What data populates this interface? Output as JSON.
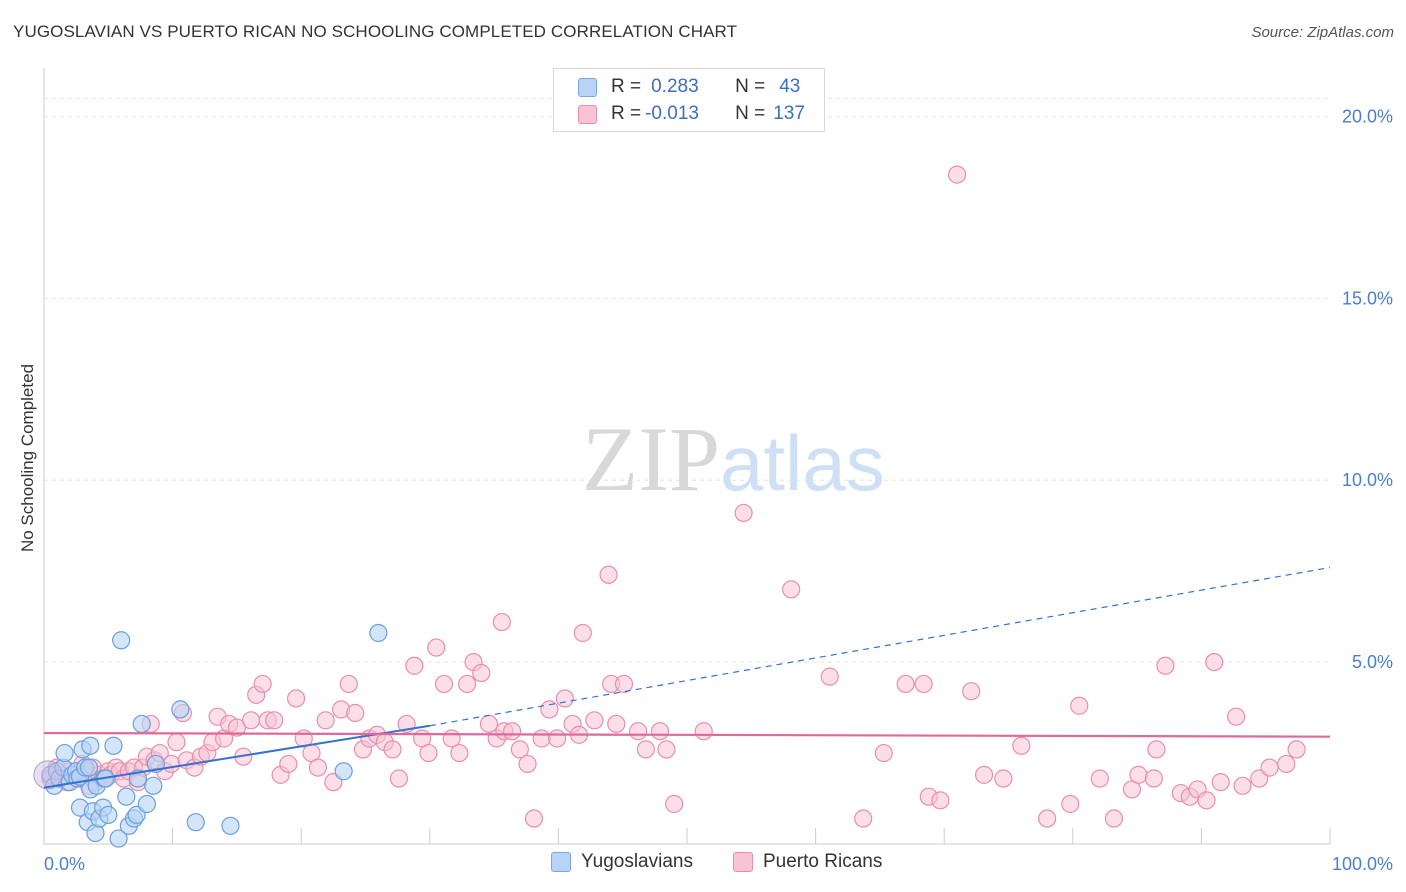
{
  "header": {
    "title": "YUGOSLAVIAN VS PUERTO RICAN NO SCHOOLING COMPLETED CORRELATION CHART",
    "source": "Source: ZipAtlas.com"
  },
  "watermark": {
    "zip": "ZIP",
    "atlas": "atlas"
  },
  "legend": {
    "r_label": "R =",
    "n_label": "N =",
    "rows": [
      {
        "name": "Yugoslavians",
        "r": "0.283",
        "n": "43",
        "fill": "#b8d3f4",
        "stroke": "#7aa7e0"
      },
      {
        "name": "Puerto Ricans",
        "r": "-0.013",
        "n": "137",
        "fill": "#f8c3d4",
        "stroke": "#e98fae"
      }
    ]
  },
  "chart_data": {
    "type": "scatter",
    "title": "YUGOSLAVIAN VS PUERTO RICAN NO SCHOOLING COMPLETED CORRELATION CHART",
    "xlabel": "",
    "ylabel": "No Schooling Completed",
    "xlim": [
      0,
      100
    ],
    "ylim": [
      0,
      21
    ],
    "x_tick_labels": [
      "0.0%",
      "100.0%"
    ],
    "y_ticks": [
      {
        "value": 5,
        "label": "5.0%"
      },
      {
        "value": 10,
        "label": "10.0%"
      },
      {
        "value": 15,
        "label": "15.0%"
      },
      {
        "value": 20,
        "label": "20.0%"
      }
    ],
    "grid": true,
    "series": [
      {
        "name": "Yugoslavians",
        "color": "#6a9fe0",
        "fill": "#b8d3f4",
        "trend": {
          "x0": 0,
          "y0": 1.55,
          "x1": 30,
          "y1": 3.25,
          "dashed_to_x": 100,
          "dashed_to_y": 7.6,
          "color": "#3572d0"
        },
        "points": [
          [
            0.5,
            1.9
          ],
          [
            0.8,
            1.6
          ],
          [
            1.0,
            2.0
          ],
          [
            1.2,
            1.8
          ],
          [
            1.5,
            2.1
          ],
          [
            1.6,
            2.5
          ],
          [
            2.0,
            1.7
          ],
          [
            2.2,
            1.9
          ],
          [
            2.5,
            2.0
          ],
          [
            2.6,
            1.8
          ],
          [
            2.8,
            1.85
          ],
          [
            3.0,
            2.6
          ],
          [
            3.2,
            2.1
          ],
          [
            2.8,
            1.0
          ],
          [
            3.4,
            0.6
          ],
          [
            3.6,
            1.5
          ],
          [
            3.5,
            2.1
          ],
          [
            3.6,
            2.7
          ],
          [
            3.8,
            0.9
          ],
          [
            4.0,
            0.3
          ],
          [
            4.1,
            1.6
          ],
          [
            4.3,
            0.7
          ],
          [
            4.6,
            1.0
          ],
          [
            4.7,
            1.8
          ],
          [
            4.8,
            1.8
          ],
          [
            5.0,
            0.8
          ],
          [
            5.4,
            2.7
          ],
          [
            5.8,
            0.15
          ],
          [
            6.0,
            5.6
          ],
          [
            6.4,
            1.3
          ],
          [
            6.6,
            0.5
          ],
          [
            7.0,
            0.7
          ],
          [
            7.2,
            0.8
          ],
          [
            7.3,
            1.8
          ],
          [
            7.6,
            3.3
          ],
          [
            8.0,
            1.1
          ],
          [
            8.5,
            1.6
          ],
          [
            8.7,
            2.2
          ],
          [
            10.6,
            3.7
          ],
          [
            11.8,
            0.6
          ],
          [
            14.5,
            0.5
          ],
          [
            23.3,
            2.0
          ],
          [
            26.0,
            5.8
          ]
        ]
      },
      {
        "name": "Puerto Ricans",
        "color": "#e98fae",
        "fill": "#f8c3d4",
        "trend": {
          "x0": 0,
          "y0": 3.05,
          "x1": 100,
          "y1": 2.95,
          "color": "#e0689a"
        },
        "points": [
          [
            0.5,
            1.8
          ],
          [
            1.0,
            2.1
          ],
          [
            1.4,
            1.9
          ],
          [
            1.8,
            1.7
          ],
          [
            2.0,
            2.0
          ],
          [
            2.4,
            1.9
          ],
          [
            2.6,
            1.8
          ],
          [
            3.0,
            2.2
          ],
          [
            3.3,
            2.0
          ],
          [
            3.5,
            1.6
          ],
          [
            3.8,
            2.1
          ],
          [
            4.0,
            1.7
          ],
          [
            4.3,
            1.9
          ],
          [
            4.6,
            1.8
          ],
          [
            5.0,
            2.0
          ],
          [
            5.2,
            1.9
          ],
          [
            5.6,
            2.1
          ],
          [
            5.9,
            2.0
          ],
          [
            6.2,
            1.8
          ],
          [
            6.6,
            2.0
          ],
          [
            7.0,
            2.1
          ],
          [
            7.3,
            1.7
          ],
          [
            7.7,
            2.1
          ],
          [
            8.0,
            2.4
          ],
          [
            8.3,
            3.3
          ],
          [
            8.6,
            2.3
          ],
          [
            9.0,
            2.5
          ],
          [
            9.4,
            2.0
          ],
          [
            9.9,
            2.2
          ],
          [
            10.3,
            2.8
          ],
          [
            10.8,
            3.6
          ],
          [
            11.1,
            2.3
          ],
          [
            11.7,
            2.1
          ],
          [
            12.2,
            2.4
          ],
          [
            12.7,
            2.5
          ],
          [
            13.1,
            2.8
          ],
          [
            13.5,
            3.5
          ],
          [
            14.0,
            2.9
          ],
          [
            14.4,
            3.3
          ],
          [
            15.0,
            3.2
          ],
          [
            15.5,
            2.4
          ],
          [
            16.1,
            3.4
          ],
          [
            16.5,
            4.1
          ],
          [
            17.0,
            4.4
          ],
          [
            17.4,
            3.4
          ],
          [
            17.9,
            3.4
          ],
          [
            18.4,
            1.9
          ],
          [
            19.0,
            2.2
          ],
          [
            19.6,
            4.0
          ],
          [
            20.2,
            2.9
          ],
          [
            20.8,
            2.5
          ],
          [
            21.3,
            2.1
          ],
          [
            21.9,
            3.4
          ],
          [
            22.5,
            1.7
          ],
          [
            23.1,
            3.7
          ],
          [
            23.7,
            4.4
          ],
          [
            24.2,
            3.6
          ],
          [
            24.8,
            2.6
          ],
          [
            25.3,
            2.9
          ],
          [
            25.9,
            3.0
          ],
          [
            26.5,
            2.8
          ],
          [
            27.1,
            2.6
          ],
          [
            27.6,
            1.8
          ],
          [
            28.2,
            3.3
          ],
          [
            28.8,
            4.9
          ],
          [
            29.4,
            2.9
          ],
          [
            29.9,
            2.5
          ],
          [
            30.5,
            5.4
          ],
          [
            31.1,
            4.4
          ],
          [
            31.7,
            2.9
          ],
          [
            32.3,
            2.5
          ],
          [
            32.9,
            4.4
          ],
          [
            33.4,
            5.0
          ],
          [
            34.0,
            4.7
          ],
          [
            34.6,
            3.3
          ],
          [
            35.2,
            2.9
          ],
          [
            35.8,
            3.1
          ],
          [
            35.6,
            6.1
          ],
          [
            36.4,
            3.1
          ],
          [
            37.0,
            2.6
          ],
          [
            37.6,
            2.2
          ],
          [
            38.1,
            0.7
          ],
          [
            38.7,
            2.9
          ],
          [
            39.3,
            3.7
          ],
          [
            39.9,
            2.9
          ],
          [
            40.5,
            4.0
          ],
          [
            41.1,
            3.3
          ],
          [
            41.6,
            3.0
          ],
          [
            41.9,
            5.8
          ],
          [
            42.8,
            3.4
          ],
          [
            43.9,
            7.4
          ],
          [
            44.1,
            4.4
          ],
          [
            44.5,
            3.3
          ],
          [
            45.1,
            4.4
          ],
          [
            46.2,
            3.1
          ],
          [
            46.8,
            2.6
          ],
          [
            47.9,
            3.1
          ],
          [
            48.4,
            2.6
          ],
          [
            49.0,
            1.1
          ],
          [
            51.3,
            3.1
          ],
          [
            54.4,
            9.1
          ],
          [
            58.1,
            7.0
          ],
          [
            61.1,
            4.6
          ],
          [
            63.7,
            0.7
          ],
          [
            65.3,
            2.5
          ],
          [
            67.0,
            4.4
          ],
          [
            68.4,
            4.4
          ],
          [
            68.8,
            1.3
          ],
          [
            69.7,
            1.2
          ],
          [
            71.0,
            18.4
          ],
          [
            72.1,
            4.2
          ],
          [
            73.1,
            1.9
          ],
          [
            74.6,
            1.8
          ],
          [
            76.0,
            2.7
          ],
          [
            78.0,
            0.7
          ],
          [
            79.8,
            1.1
          ],
          [
            80.5,
            3.8
          ],
          [
            82.1,
            1.8
          ],
          [
            83.2,
            0.7
          ],
          [
            84.6,
            1.5
          ],
          [
            85.1,
            1.9
          ],
          [
            86.5,
            2.6
          ],
          [
            86.3,
            1.8
          ],
          [
            87.2,
            4.9
          ],
          [
            88.4,
            1.4
          ],
          [
            89.1,
            1.3
          ],
          [
            89.7,
            1.5
          ],
          [
            90.4,
            1.2
          ],
          [
            91.0,
            5.0
          ],
          [
            91.5,
            1.7
          ],
          [
            92.7,
            3.5
          ],
          [
            93.2,
            1.6
          ],
          [
            94.5,
            1.8
          ],
          [
            95.3,
            2.1
          ],
          [
            96.6,
            2.2
          ],
          [
            97.4,
            2.6
          ]
        ]
      }
    ]
  }
}
